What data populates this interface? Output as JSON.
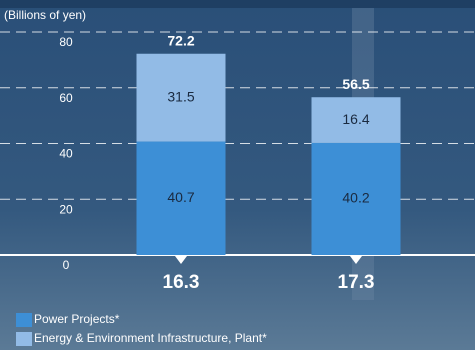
{
  "chart_data": {
    "type": "stacked-bar",
    "y_label": "(Billions of yen)",
    "categories": [
      "16.3",
      "17.3"
    ],
    "series": [
      {
        "name": "Power Projects*",
        "color": "#3d8fd6",
        "values": [
          40.7,
          40.2
        ]
      },
      {
        "name": "Energy & Environment Infrastructure, Plant*",
        "color": "#92bbe6",
        "values": [
          31.5,
          16.4
        ]
      }
    ],
    "totals": [
      72.2,
      56.5
    ],
    "ylim": [
      0,
      80
    ],
    "yticks": [
      0,
      20,
      40,
      60,
      80
    ],
    "grid": true
  }
}
